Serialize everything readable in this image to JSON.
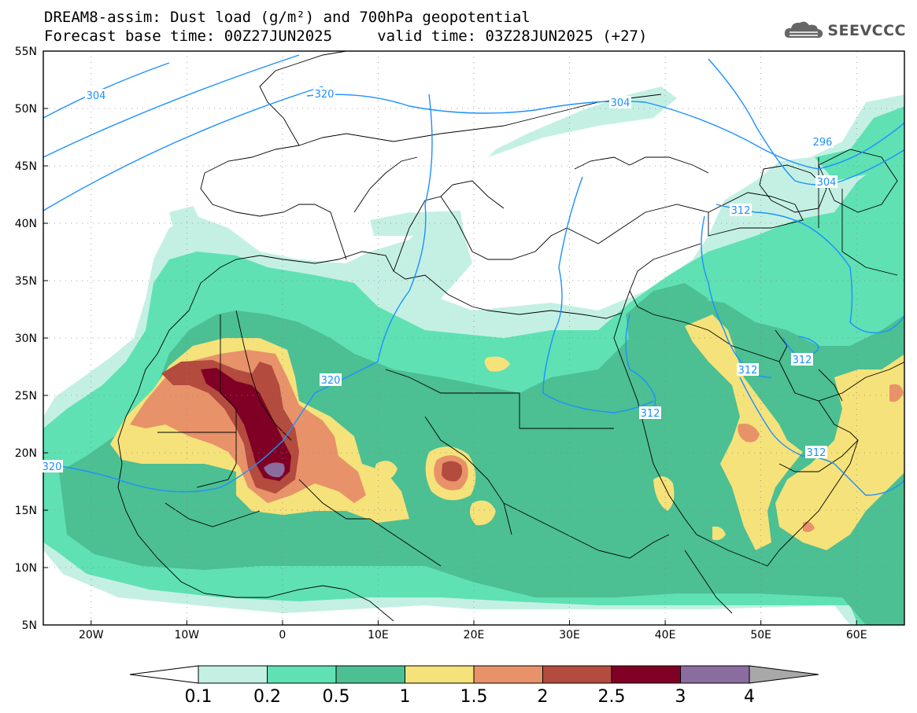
{
  "title": {
    "line1": "DREAM8-assim: Dust load (g/m²) and 700hPa geopotential",
    "line2": "Forecast base time: 00Z27JUN2025     valid time: 03Z28JUN2025 (+27)"
  },
  "logo": {
    "text": "SEEVCCC",
    "icon": "cloud-icon"
  },
  "map": {
    "lon_range": [
      -25,
      65
    ],
    "lat_range": [
      5,
      55
    ],
    "lat_ticks": [
      "55N",
      "50N",
      "45N",
      "40N",
      "35N",
      "30N",
      "25N",
      "20N",
      "15N",
      "10N",
      "5N"
    ],
    "lon_ticks": [
      "20W",
      "10W",
      "0",
      "10E",
      "20E",
      "30E",
      "40E",
      "50E",
      "60E"
    ],
    "grid": "dotted",
    "ocean_color": "#ffffff",
    "land_outline_color": "#000000"
  },
  "colorbar": {
    "labels": [
      "0.1",
      "0.2",
      "0.5",
      "1",
      "1.5",
      "2",
      "2.5",
      "3",
      "4"
    ],
    "colors": [
      "#c4f0e4",
      "#5fe1b3",
      "#4cbf93",
      "#f5e27a",
      "#e8926a",
      "#b34b3e",
      "#800025",
      "#8a6d9e"
    ],
    "under_color": "#ffffff",
    "over_color": "#a8a8a8"
  },
  "contours": {
    "color": "#1e90ff",
    "labels": [
      "304",
      "320",
      "304",
      "296",
      "304",
      "312",
      "320",
      "312",
      "312",
      "312",
      "312",
      "320"
    ]
  }
}
